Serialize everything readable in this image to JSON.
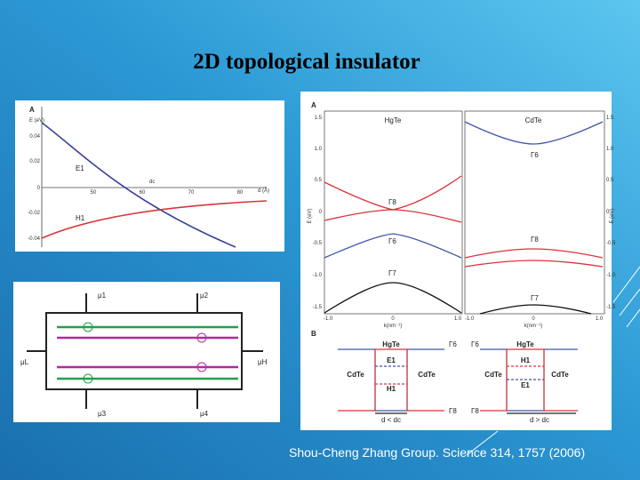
{
  "title": "2D topological insulator",
  "caption": "Shou-Cheng Zhang Group. Science 314, 1757 (2006)",
  "panel_energy": {
    "label": "A",
    "y_axis": "E (eV)",
    "y_ticks": [
      "0.04",
      "0.02",
      "0",
      "-0.02",
      "-0.04"
    ],
    "x_axis": "d (Å)",
    "x_ticks": [
      "50",
      "60",
      "70",
      "80"
    ],
    "curves": [
      "E1",
      "H1"
    ],
    "critical": "dc"
  },
  "panel_hall_bar": {
    "contacts": [
      "μ1",
      "μ2",
      "μ3",
      "μ4",
      "μL",
      "μH"
    ]
  },
  "panel_bands": {
    "label_a": "A",
    "materials": [
      "HgTe",
      "CdTe"
    ],
    "y_axis": "E (eV)",
    "y_ticks": [
      "1.5",
      "1.0",
      "0.5",
      "0",
      "-0.5",
      "-1.0",
      "-1.5"
    ],
    "x_axis": "k(nm⁻¹)",
    "x_ticks": [
      "-1.0",
      "0",
      "1.0"
    ],
    "hgte_bands": [
      "Γ8",
      "Γ6",
      "Γ7"
    ],
    "cdte_bands": [
      "Γ6",
      "Γ8",
      "Γ7"
    ],
    "label_b": "B",
    "well_material": "HgTe",
    "barrier_material": "CdTe",
    "levels": [
      "E1",
      "H1"
    ],
    "edge_bands": [
      "Γ6",
      "Γ8"
    ],
    "conditions": [
      "d < dc",
      "d > dc"
    ]
  }
}
